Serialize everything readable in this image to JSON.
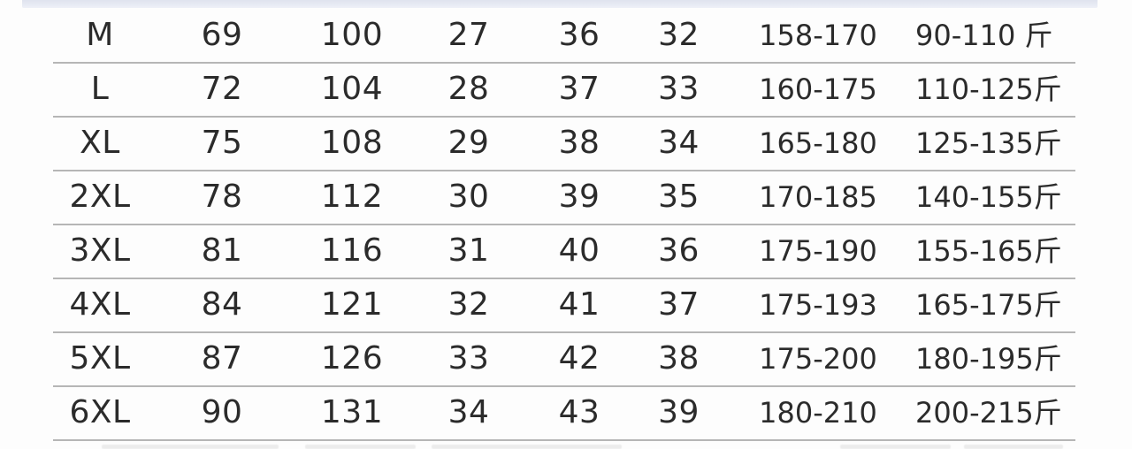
{
  "theme": {
    "background": "#fdfdfd",
    "text_color": "#2b2b2b",
    "separator_color": "#9e9e9e",
    "top_band_color": "#e7eaf3"
  },
  "chart_data": {
    "type": "table",
    "header_visible": false,
    "unit_note": "斤",
    "rows": [
      [
        "M",
        "69",
        "100",
        "27",
        "36",
        "32",
        "158-170",
        "90-110 斤"
      ],
      [
        "L",
        "72",
        "104",
        "28",
        "37",
        "33",
        "160-175",
        "110-125斤"
      ],
      [
        "XL",
        "75",
        "108",
        "29",
        "38",
        "34",
        "165-180",
        "125-135斤"
      ],
      [
        "2XL",
        "78",
        "112",
        "30",
        "39",
        "35",
        "170-185",
        "140-155斤"
      ],
      [
        "3XL",
        "81",
        "116",
        "31",
        "40",
        "36",
        "175-190",
        "155-165斤"
      ],
      [
        "4XL",
        "84",
        "121",
        "32",
        "41",
        "37",
        "175-193",
        "165-175斤"
      ],
      [
        "5XL",
        "87",
        "126",
        "33",
        "42",
        "38",
        "175-200",
        "180-195斤"
      ],
      [
        "6XL",
        "90",
        "131",
        "34",
        "43",
        "39",
        "180-210",
        "200-215斤"
      ]
    ]
  }
}
